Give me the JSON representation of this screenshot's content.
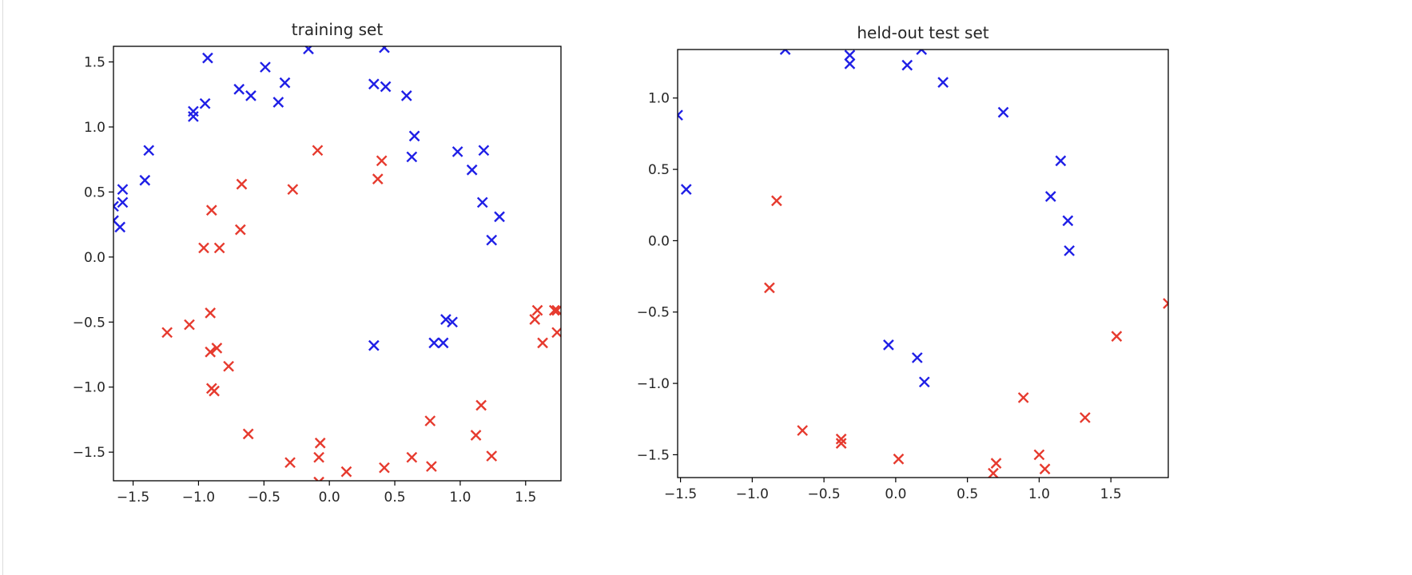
{
  "chart_data": [
    {
      "type": "scatter",
      "title": "training set",
      "xlabel": "",
      "ylabel": "",
      "xlim": [
        -1.65,
        1.77
      ],
      "ylim": [
        -1.72,
        1.62
      ],
      "xticks": [
        "−1.5",
        "−1.0",
        "−0.5",
        "0.0",
        "0.5",
        "1.0",
        "1.5"
      ],
      "xtick_values": [
        -1.5,
        -1.0,
        -0.5,
        0.0,
        0.5,
        1.0,
        1.5
      ],
      "yticks": [
        "−1.5",
        "−1.0",
        "−0.5",
        "0.0",
        "0.5",
        "1.0",
        "1.5"
      ],
      "ytick_values": [
        -1.5,
        -1.0,
        -0.5,
        0.0,
        0.5,
        1.0,
        1.5
      ],
      "grid": false,
      "marker": "x",
      "series": [
        {
          "color": "#1f1fe6",
          "points": [
            [
              -0.93,
              1.53
            ],
            [
              -0.16,
              1.6
            ],
            [
              0.42,
              1.61
            ],
            [
              -0.49,
              1.46
            ],
            [
              -0.34,
              1.34
            ],
            [
              0.34,
              1.33
            ],
            [
              0.43,
              1.31
            ],
            [
              0.59,
              1.24
            ],
            [
              -0.69,
              1.29
            ],
            [
              -0.6,
              1.24
            ],
            [
              -0.39,
              1.19
            ],
            [
              -0.95,
              1.18
            ],
            [
              -1.04,
              1.12
            ],
            [
              -1.04,
              1.08
            ],
            [
              0.65,
              0.93
            ],
            [
              0.63,
              0.77
            ],
            [
              0.98,
              0.81
            ],
            [
              1.18,
              0.82
            ],
            [
              1.09,
              0.67
            ],
            [
              -1.38,
              0.82
            ],
            [
              -1.41,
              0.59
            ],
            [
              -1.58,
              0.52
            ],
            [
              -1.58,
              0.42
            ],
            [
              -1.65,
              0.39
            ],
            [
              -1.65,
              0.28
            ],
            [
              -1.6,
              0.23
            ],
            [
              1.17,
              0.42
            ],
            [
              1.3,
              0.31
            ],
            [
              1.24,
              0.13
            ],
            [
              0.34,
              -0.68
            ],
            [
              0.89,
              -0.48
            ],
            [
              0.94,
              -0.5
            ],
            [
              0.8,
              -0.66
            ],
            [
              0.87,
              -0.66
            ]
          ]
        },
        {
          "color": "#e63a2e",
          "points": [
            [
              -0.09,
              0.82
            ],
            [
              0.4,
              0.74
            ],
            [
              0.37,
              0.6
            ],
            [
              -0.67,
              0.56
            ],
            [
              -0.28,
              0.52
            ],
            [
              -0.9,
              0.36
            ],
            [
              -0.68,
              0.21
            ],
            [
              -0.96,
              0.07
            ],
            [
              -0.84,
              0.07
            ],
            [
              -0.91,
              -0.43
            ],
            [
              -1.07,
              -0.52
            ],
            [
              -1.24,
              -0.58
            ],
            [
              -0.86,
              -0.7
            ],
            [
              -0.91,
              -0.73
            ],
            [
              -0.77,
              -0.84
            ],
            [
              -0.9,
              -1.01
            ],
            [
              -0.88,
              -1.03
            ],
            [
              -0.62,
              -1.36
            ],
            [
              -0.07,
              -1.43
            ],
            [
              -0.08,
              -1.54
            ],
            [
              -0.3,
              -1.58
            ],
            [
              0.13,
              -1.65
            ],
            [
              -0.08,
              -1.73
            ],
            [
              0.42,
              -1.62
            ],
            [
              0.63,
              -1.54
            ],
            [
              0.78,
              -1.61
            ],
            [
              0.77,
              -1.26
            ],
            [
              1.12,
              -1.37
            ],
            [
              1.16,
              -1.14
            ],
            [
              1.24,
              -1.53
            ],
            [
              1.59,
              -0.41
            ],
            [
              1.57,
              -0.48
            ],
            [
              1.72,
              -0.41
            ],
            [
              1.74,
              -0.41
            ],
            [
              1.63,
              -0.66
            ],
            [
              1.74,
              -0.58
            ]
          ]
        }
      ]
    },
    {
      "type": "scatter",
      "title": "held-out test set",
      "xlabel": "",
      "ylabel": "",
      "xlim": [
        -1.52,
        1.9
      ],
      "ylim": [
        -1.66,
        1.34
      ],
      "xticks": [
        "−1.5",
        "−1.0",
        "−0.5",
        "0.0",
        "0.5",
        "1.0",
        "1.5"
      ],
      "xtick_values": [
        -1.5,
        -1.0,
        -0.5,
        0.0,
        0.5,
        1.0,
        1.5
      ],
      "yticks": [
        "−1.5",
        "−1.0",
        "−0.5",
        "0.0",
        "0.5",
        "1.0"
      ],
      "ytick_values": [
        -1.5,
        -1.0,
        -0.5,
        0.0,
        0.5,
        1.0
      ],
      "grid": false,
      "marker": "x",
      "series": [
        {
          "color": "#1f1fe6",
          "points": [
            [
              -0.77,
              1.34
            ],
            [
              -0.32,
              1.3
            ],
            [
              -0.32,
              1.24
            ],
            [
              0.08,
              1.23
            ],
            [
              0.18,
              1.34
            ],
            [
              0.33,
              1.11
            ],
            [
              0.75,
              0.9
            ],
            [
              -1.52,
              0.88
            ],
            [
              -1.46,
              0.36
            ],
            [
              1.15,
              0.56
            ],
            [
              1.08,
              0.31
            ],
            [
              1.2,
              0.14
            ],
            [
              1.21,
              -0.07
            ],
            [
              -0.05,
              -0.73
            ],
            [
              0.15,
              -0.82
            ],
            [
              0.2,
              -0.99
            ]
          ]
        },
        {
          "color": "#e63a2e",
          "points": [
            [
              -0.83,
              0.28
            ],
            [
              -0.88,
              -0.33
            ],
            [
              -0.65,
              -1.33
            ],
            [
              -0.38,
              -1.39
            ],
            [
              -0.38,
              -1.42
            ],
            [
              0.02,
              -1.53
            ],
            [
              0.7,
              -1.56
            ],
            [
              0.68,
              -1.63
            ],
            [
              1.0,
              -1.5
            ],
            [
              1.04,
              -1.6
            ],
            [
              0.89,
              -1.1
            ],
            [
              1.32,
              -1.24
            ],
            [
              1.54,
              -0.67
            ],
            [
              1.9,
              -0.44
            ]
          ]
        }
      ]
    }
  ]
}
